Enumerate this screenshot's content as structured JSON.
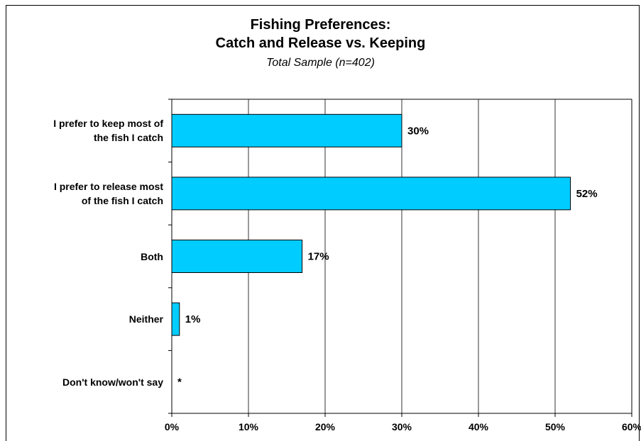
{
  "chart_data": {
    "type": "bar",
    "orientation": "horizontal",
    "title": "Fishing Preferences:",
    "title_line2": "Catch and Release vs. Keeping",
    "subtitle": "Total Sample (n=402)",
    "categories": [
      "I prefer to keep most of the fish I catch",
      "I prefer to release most of the fish I catch",
      "Both",
      "Neither",
      "Don't know/won't say"
    ],
    "category_lines": [
      [
        "I prefer to keep most of",
        "the fish I catch"
      ],
      [
        "I prefer to release most",
        "of the fish I catch"
      ],
      [
        "Both"
      ],
      [
        "Neither"
      ],
      [
        "Don't know/won't say"
      ]
    ],
    "values": [
      30,
      52,
      17,
      1,
      0
    ],
    "data_labels": [
      "30%",
      "52%",
      "17%",
      "1%",
      "*"
    ],
    "xlim": [
      0,
      60
    ],
    "xticks": [
      0,
      10,
      20,
      30,
      40,
      50,
      60
    ],
    "xtick_labels": [
      "0%",
      "10%",
      "20%",
      "30%",
      "40%",
      "50%",
      "60%"
    ],
    "grid": true,
    "bar_color": "#00CCFF",
    "bar_border_color": "#000000"
  }
}
